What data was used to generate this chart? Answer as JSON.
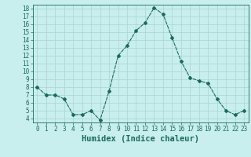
{
  "x": [
    0,
    1,
    2,
    3,
    4,
    5,
    6,
    7,
    8,
    9,
    10,
    11,
    12,
    13,
    14,
    15,
    16,
    17,
    18,
    19,
    20,
    21,
    22,
    23
  ],
  "y": [
    8,
    7,
    7,
    6.5,
    4.5,
    4.5,
    5,
    3.8,
    7.5,
    12,
    13.3,
    15.2,
    16.2,
    18.1,
    17.3,
    14.3,
    11.3,
    9.2,
    8.8,
    8.5,
    6.5,
    5,
    4.5,
    5
  ],
  "line_color": "#1a6b5a",
  "marker": "D",
  "marker_size": 2,
  "bg_color": "#c8eeee",
  "grid_color": "#aad4d4",
  "xlabel": "Humidex (Indice chaleur)",
  "xlim": [
    -0.5,
    23.5
  ],
  "ylim": [
    3.5,
    18.5
  ],
  "yticks": [
    4,
    5,
    6,
    7,
    8,
    9,
    10,
    11,
    12,
    13,
    14,
    15,
    16,
    17,
    18
  ],
  "xticks": [
    0,
    1,
    2,
    3,
    4,
    5,
    6,
    7,
    8,
    9,
    10,
    11,
    12,
    13,
    14,
    15,
    16,
    17,
    18,
    19,
    20,
    21,
    22,
    23
  ],
  "tick_color": "#1a6b5a",
  "tick_fontsize": 5.5,
  "xlabel_fontsize": 7.5,
  "label_color": "#1a6b5a"
}
